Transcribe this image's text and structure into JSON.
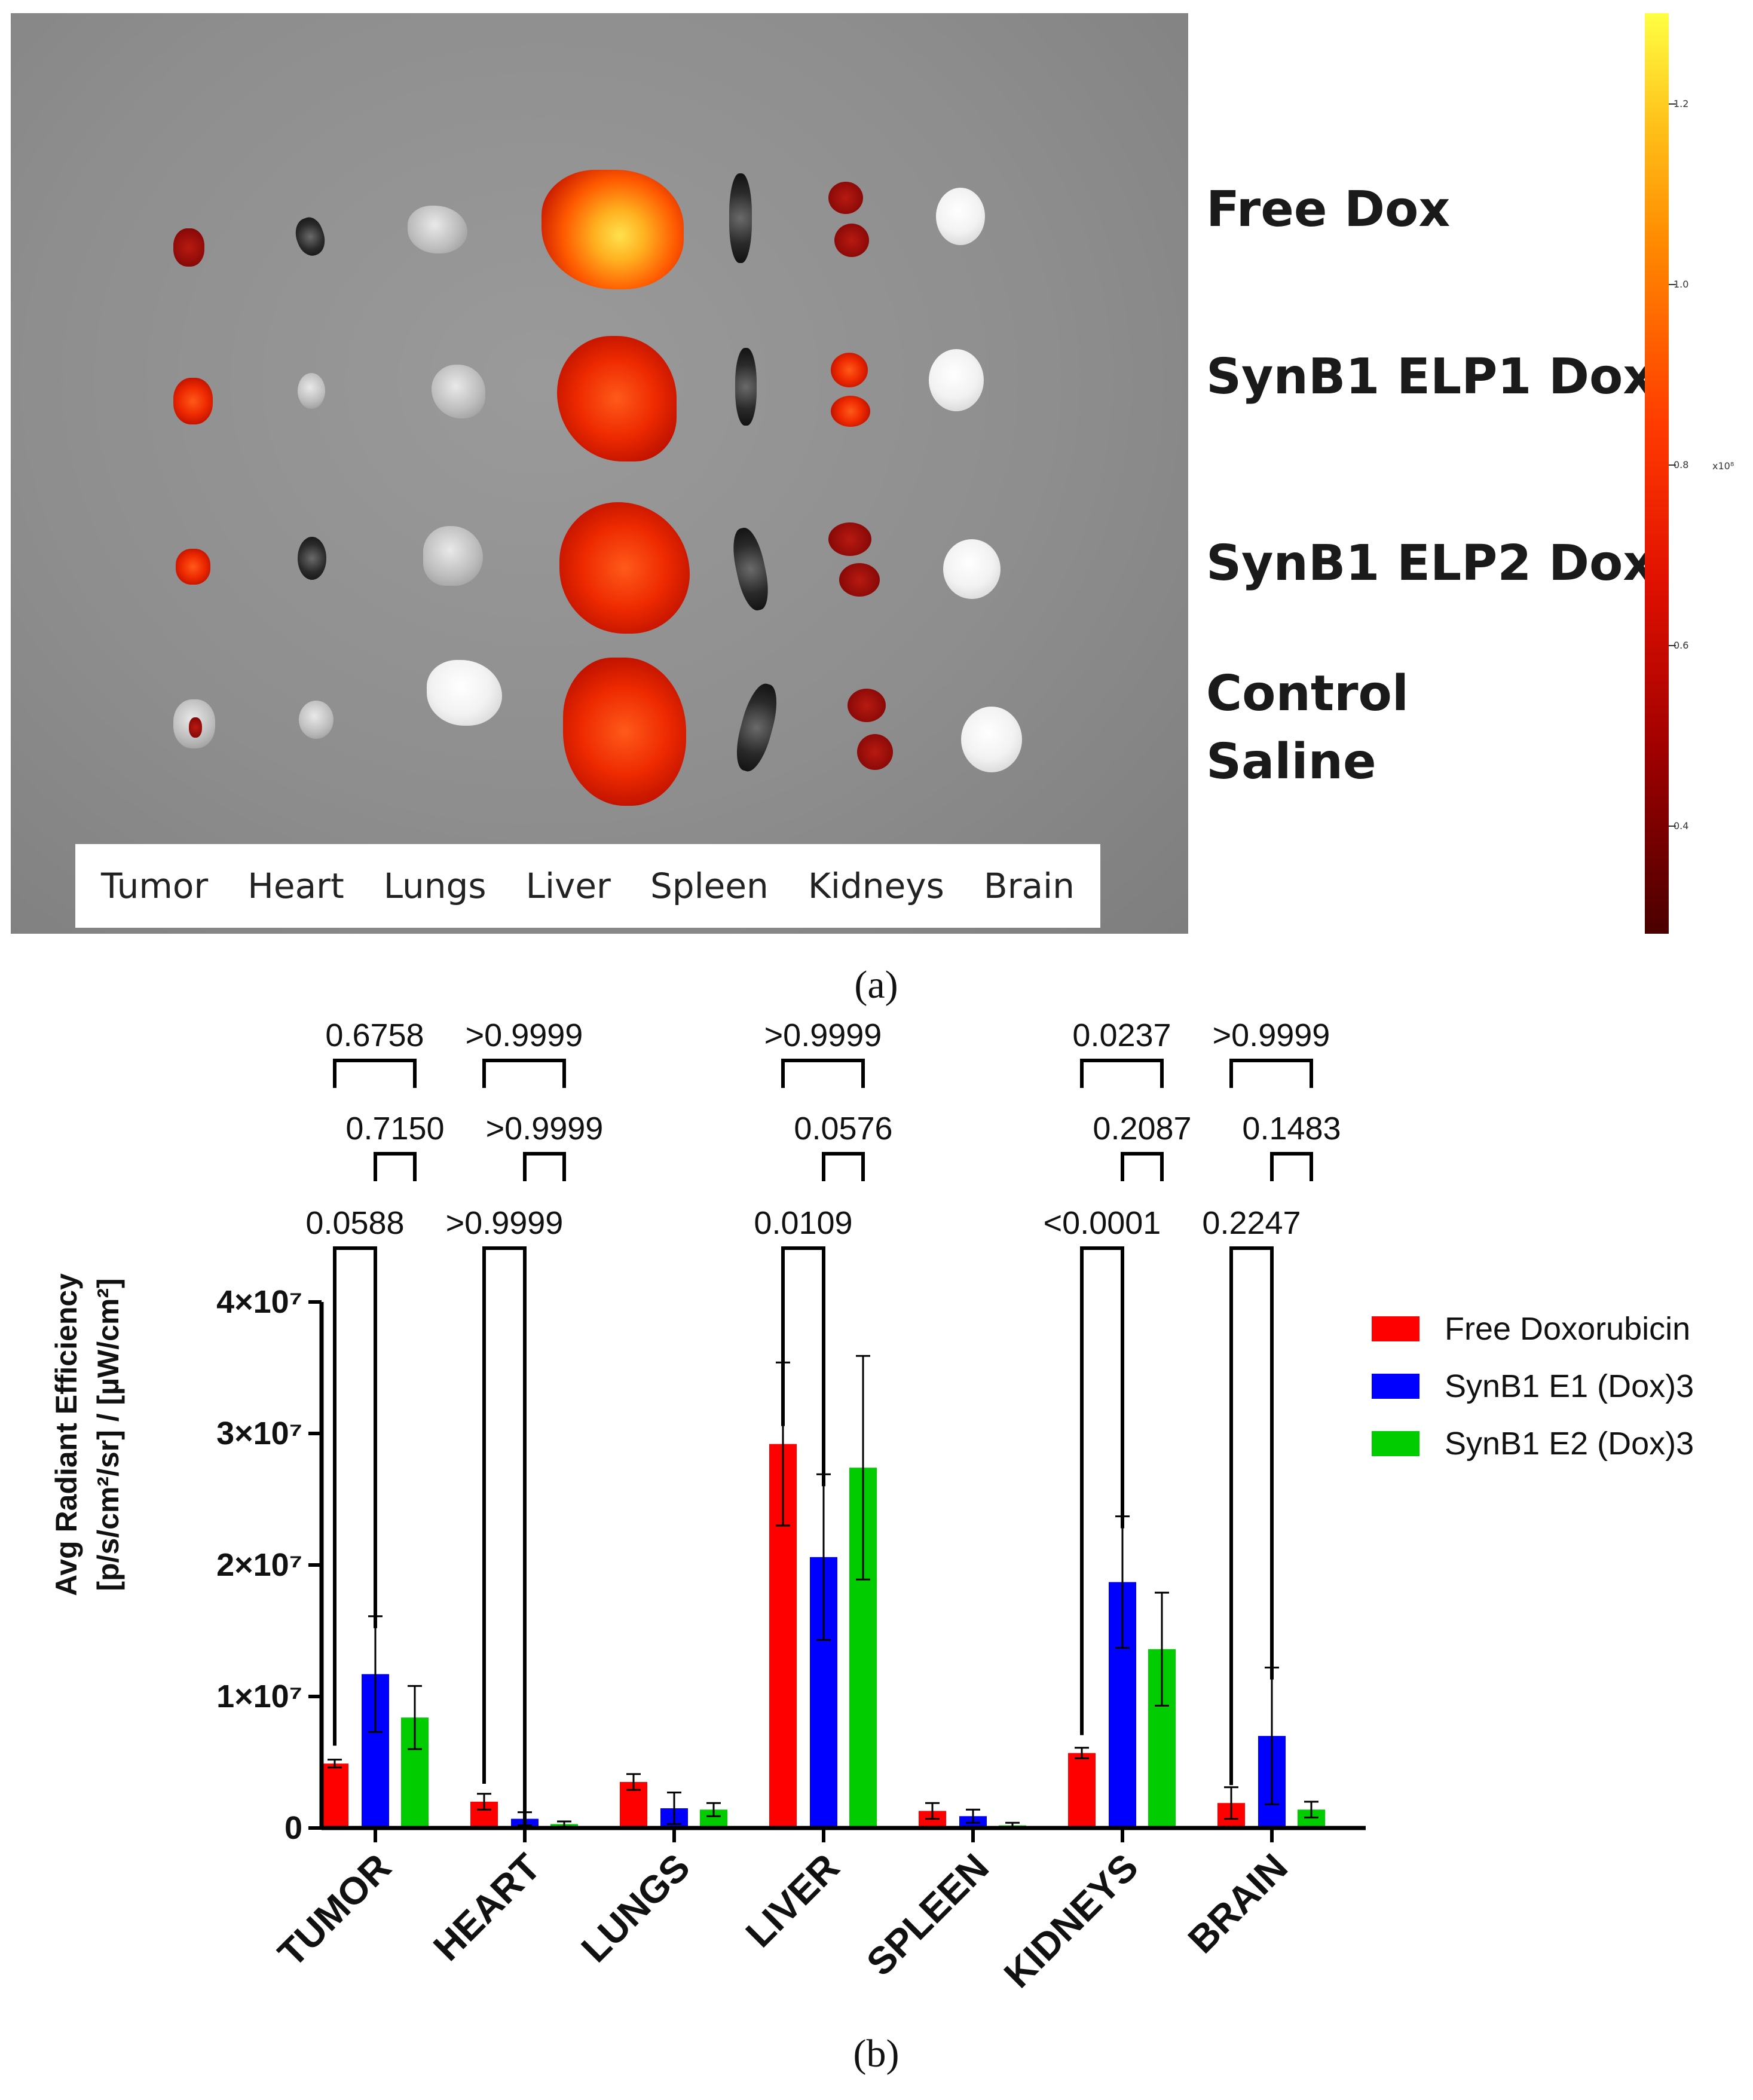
{
  "panel_a": {
    "organ_labels": [
      "Tumor",
      "Heart",
      "Lungs",
      "Liver",
      "Spleen",
      "Kidneys",
      "Brain"
    ],
    "group_labels": [
      "Free Dox",
      "SynB1 ELP1 Dox",
      "SynB1 ELP2 Dox",
      "Control",
      "Saline"
    ],
    "colorbar": {
      "exponent": "x10⁸",
      "ticks": [
        "1.2",
        "1.0",
        "0.8",
        "0.6",
        "0.4"
      ],
      "tick_values": [
        1.2,
        1.0,
        0.8,
        0.6,
        0.4
      ],
      "min": 0.28,
      "max": 1.3
    },
    "caption": "(a)"
  },
  "panel_b": {
    "caption": "(b)"
  },
  "chart_data": {
    "type": "bar",
    "title": "",
    "xlabel": "",
    "ylabel_line1": "Avg Radiant Efficiency",
    "ylabel_line2": "[p/s/cm²/sr] / [µW/cm²]",
    "ylim": [
      0,
      40000000
    ],
    "y_ticks": [
      {
        "value": 0,
        "label": "0"
      },
      {
        "value": 10000000,
        "label": "1×10⁷"
      },
      {
        "value": 20000000,
        "label": "2×10⁷"
      },
      {
        "value": 30000000,
        "label": "3×10⁷"
      },
      {
        "value": 40000000,
        "label": "4×10⁷"
      }
    ],
    "categories": [
      "TUMOR",
      "HEART",
      "LUNGS",
      "LIVER",
      "SPLEEN",
      "KIDNEYS",
      "BRAIN"
    ],
    "series": [
      {
        "name": "Free Doxorubicin",
        "color": "#ff0000",
        "values": [
          4900000,
          2000000,
          3500000,
          29200000,
          1300000,
          5700000,
          1900000
        ],
        "errors": [
          300000,
          600000,
          600000,
          6200000,
          600000,
          400000,
          1200000
        ]
      },
      {
        "name": "SynB1 E1 (Dox)3",
        "color": "#0000ff",
        "values": [
          11700000,
          700000,
          1500000,
          20600000,
          900000,
          18700000,
          7000000
        ],
        "errors": [
          4400000,
          500000,
          1200000,
          6300000,
          500000,
          5000000,
          5200000
        ]
      },
      {
        "name": "SynB1 E2 (Dox)3",
        "color": "#00cc00",
        "values": [
          8400000,
          300000,
          1400000,
          27400000,
          200000,
          13600000,
          1400000
        ],
        "errors": [
          2400000,
          200000,
          500000,
          8500000,
          200000,
          4300000,
          600000
        ]
      }
    ],
    "comparisons": [
      {
        "category": 0,
        "from": 0,
        "to": 1,
        "label": "0.0588",
        "level": 1
      },
      {
        "category": 0,
        "from": 1,
        "to": 2,
        "label": "0.7150",
        "level": 2
      },
      {
        "category": 0,
        "from": 0,
        "to": 2,
        "label": "0.6758",
        "level": 3
      },
      {
        "category": 1,
        "from": 0,
        "to": 1,
        "label": ">0.9999",
        "level": 1
      },
      {
        "category": 1,
        "from": 1,
        "to": 2,
        "label": ">0.9999",
        "level": 2
      },
      {
        "category": 1,
        "from": 0,
        "to": 2,
        "label": ">0.9999",
        "level": 3
      },
      {
        "category": 3,
        "from": 0,
        "to": 1,
        "label": "0.0109",
        "level": 1
      },
      {
        "category": 3,
        "from": 1,
        "to": 2,
        "label": "0.0576",
        "level": 2
      },
      {
        "category": 3,
        "from": 0,
        "to": 2,
        "label": ">0.9999",
        "level": 3
      },
      {
        "category": 5,
        "from": 0,
        "to": 1,
        "label": "<0.0001",
        "level": 1
      },
      {
        "category": 5,
        "from": 1,
        "to": 2,
        "label": "0.2087",
        "level": 2
      },
      {
        "category": 5,
        "from": 0,
        "to": 2,
        "label": "0.0237",
        "level": 3
      },
      {
        "category": 6,
        "from": 0,
        "to": 1,
        "label": "0.2247",
        "level": 1
      },
      {
        "category": 6,
        "from": 1,
        "to": 2,
        "label": "0.1483",
        "level": 2
      },
      {
        "category": 6,
        "from": 0,
        "to": 2,
        "label": ">0.9999",
        "level": 3
      }
    ],
    "legend_position": "right"
  }
}
